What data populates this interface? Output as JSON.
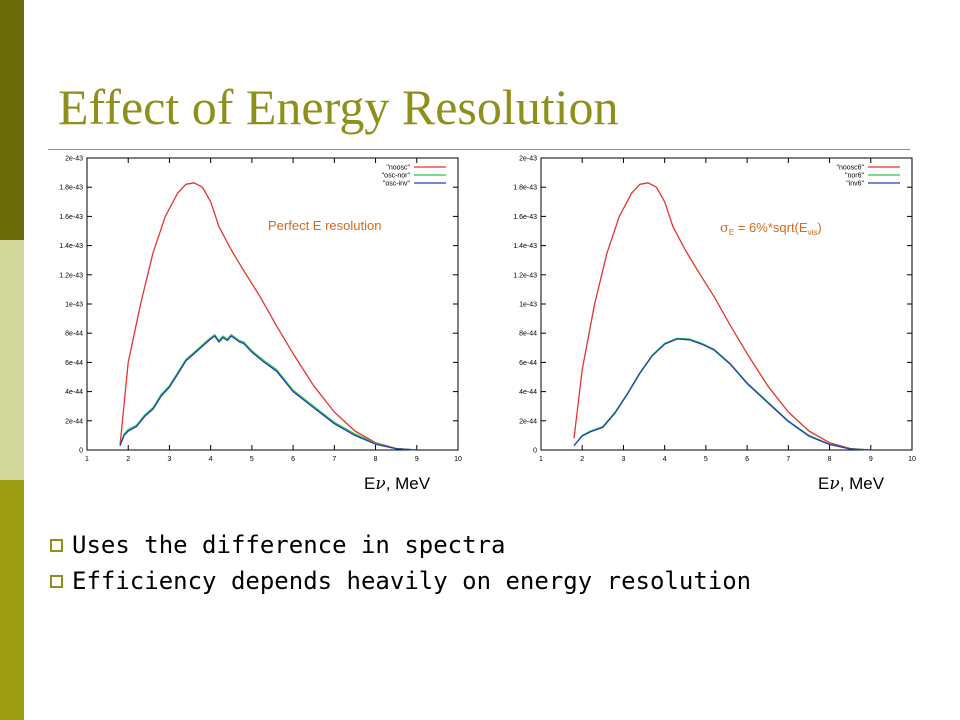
{
  "slide": {
    "title": "Effect of Energy Resolution",
    "bullets": [
      "Uses the difference in spectra",
      "Efficiency depends heavily on energy resolution"
    ],
    "colors": {
      "accent": "#8f8f1c",
      "bar_dark": "#6b6b0a",
      "bar_light": "#d2d79c",
      "bar_mid": "#9d9d14"
    }
  },
  "xcaption": {
    "symbol": "E",
    "nu": "ν",
    "unit": ", MeV"
  },
  "chart_data": [
    {
      "type": "line",
      "annotation": "Perfect E resolution",
      "xlim": [
        1,
        10
      ],
      "ylim": [
        0,
        2e-43
      ],
      "xticks": [
        1,
        2,
        3,
        4,
        5,
        6,
        7,
        8,
        9,
        10
      ],
      "yticks": [
        0,
        2e-44,
        4e-44,
        6e-44,
        8e-44,
        1e-43,
        1.2e-43,
        1.4e-43,
        1.6e-43,
        1.8e-43,
        2e-43
      ],
      "ytick_labels": [
        "0",
        "2e-44",
        "4e-44",
        "6e-44",
        "8e-44",
        "1e-43",
        "1.2e-43",
        "1.4e-43",
        "1.6e-43",
        "1.8e-43",
        "2e-43"
      ],
      "legend_position": "top-right",
      "series": [
        {
          "name": "\"noosc\"",
          "color": "#e8322d",
          "x": [
            1.8,
            2.0,
            2.3,
            2.6,
            2.9,
            3.2,
            3.4,
            3.6,
            3.8,
            4.0,
            4.2,
            4.5,
            4.8,
            5.2,
            5.6,
            6.0,
            6.5,
            7.0,
            7.5,
            8.0,
            8.5,
            9.0
          ],
          "y": [
            3e-45,
            6e-44,
            1e-43,
            1.35e-43,
            1.6e-43,
            1.76e-43,
            1.82e-43,
            1.83e-43,
            1.8e-43,
            1.7e-43,
            1.53e-43,
            1.37e-43,
            1.23e-43,
            1.05e-43,
            8.5e-44,
            6.6e-44,
            4.4e-44,
            2.6e-44,
            1.3e-44,
            5e-45,
            1e-45,
            0
          ]
        },
        {
          "name": "\"osc-nor\"",
          "color": "#2fc44a",
          "x": [
            1.8,
            1.9,
            2.0,
            2.2,
            2.4,
            2.6,
            2.8,
            3.0,
            3.2,
            3.4,
            3.6,
            3.8,
            4.0,
            4.1,
            4.2,
            4.3,
            4.4,
            4.5,
            4.6,
            4.7,
            4.8,
            5.0,
            5.3,
            5.6,
            6.0,
            6.5,
            7.0,
            7.5,
            8.0,
            8.5,
            9.0
          ],
          "y": [
            3e-45,
            1.1e-44,
            1.4e-44,
            1.7e-44,
            2.4e-44,
            2.9e-44,
            3.8e-44,
            4.4e-44,
            5.3e-44,
            6.2e-44,
            6.7e-44,
            7.2e-44,
            7.7e-44,
            7.9e-44,
            7.5e-44,
            7.8e-44,
            7.6e-44,
            7.9e-44,
            7.7e-44,
            7.5e-44,
            7.4e-44,
            6.8e-44,
            6.1e-44,
            5.5e-44,
            4.1e-44,
            3e-44,
            1.9e-44,
            1.1e-44,
            4.5e-45,
            1e-45,
            0
          ]
        },
        {
          "name": "\"osc-inv\"",
          "color": "#1f3fb8",
          "x": [
            1.8,
            1.9,
            2.0,
            2.2,
            2.4,
            2.6,
            2.8,
            3.0,
            3.2,
            3.4,
            3.6,
            3.8,
            4.0,
            4.1,
            4.2,
            4.3,
            4.4,
            4.5,
            4.6,
            4.7,
            4.8,
            5.0,
            5.3,
            5.6,
            6.0,
            6.5,
            7.0,
            7.5,
            8.0,
            8.5,
            9.0
          ],
          "y": [
            3e-45,
            1e-44,
            1.3e-44,
            1.6e-44,
            2.3e-44,
            2.8e-44,
            3.7e-44,
            4.3e-44,
            5.2e-44,
            6.1e-44,
            6.6e-44,
            7.1e-44,
            7.6e-44,
            7.8e-44,
            7.4e-44,
            7.7e-44,
            7.5e-44,
            7.8e-44,
            7.6e-44,
            7.4e-44,
            7.3e-44,
            6.7e-44,
            6e-44,
            5.4e-44,
            4e-44,
            2.9e-44,
            1.8e-44,
            1e-44,
            4e-45,
            8e-46,
            0
          ]
        }
      ]
    },
    {
      "type": "line",
      "annotation_parts": {
        "sigma": "σ",
        "sigma_sub": "E",
        "mid": " = 6%*sqrt(E",
        "vis_sub": "vis",
        "close": ")"
      },
      "xlim": [
        1,
        10
      ],
      "ylim": [
        0,
        2e-43
      ],
      "xticks": [
        1,
        2,
        3,
        4,
        5,
        6,
        7,
        8,
        9,
        10
      ],
      "yticks": [
        0,
        2e-44,
        4e-44,
        6e-44,
        8e-44,
        1e-43,
        1.2e-43,
        1.4e-43,
        1.6e-43,
        1.8e-43,
        2e-43
      ],
      "ytick_labels": [
        "0",
        "2e-44",
        "4e-44",
        "6e-44",
        "8e-44",
        "1e-43",
        "1.2e-43",
        "1.4e-43",
        "1.6e-43",
        "1.8e-43",
        "2e-43"
      ],
      "legend_position": "top-right",
      "series": [
        {
          "name": "\"noosc6\"",
          "color": "#e8322d",
          "x": [
            1.8,
            2.0,
            2.3,
            2.6,
            2.9,
            3.2,
            3.4,
            3.6,
            3.8,
            4.0,
            4.2,
            4.5,
            4.8,
            5.2,
            5.6,
            6.0,
            6.5,
            7.0,
            7.5,
            8.0,
            8.5,
            9.0
          ],
          "y": [
            8e-45,
            5.5e-44,
            1e-43,
            1.35e-43,
            1.6e-43,
            1.76e-43,
            1.82e-43,
            1.83e-43,
            1.8e-43,
            1.7e-43,
            1.53e-43,
            1.37e-43,
            1.23e-43,
            1.05e-43,
            8.5e-44,
            6.6e-44,
            4.4e-44,
            2.6e-44,
            1.3e-44,
            5e-45,
            1e-45,
            0
          ]
        },
        {
          "name": "\"nor6\"",
          "color": "#2fc44a",
          "x": [
            1.8,
            2.0,
            2.2,
            2.5,
            2.8,
            3.1,
            3.4,
            3.7,
            4.0,
            4.3,
            4.6,
            4.9,
            5.2,
            5.6,
            6.0,
            6.5,
            7.0,
            7.5,
            8.0,
            8.5,
            9.0
          ],
          "y": [
            3e-45,
            1e-44,
            1.3e-44,
            1.6e-44,
            2.6e-44,
            3.9e-44,
            5.3e-44,
            6.5e-44,
            7.3e-44,
            7.65e-44,
            7.6e-44,
            7.3e-44,
            6.9e-44,
            5.9e-44,
            4.6e-44,
            3.3e-44,
            2e-44,
            1e-44,
            4e-45,
            8e-46,
            0
          ]
        },
        {
          "name": "\"inv6\"",
          "color": "#1f3fb8",
          "x": [
            1.8,
            2.0,
            2.2,
            2.5,
            2.8,
            3.1,
            3.4,
            3.7,
            4.0,
            4.3,
            4.6,
            4.9,
            5.2,
            5.6,
            6.0,
            6.5,
            7.0,
            7.5,
            8.0,
            8.5,
            9.0
          ],
          "y": [
            3e-45,
            9.5e-45,
            1.25e-44,
            1.55e-44,
            2.55e-44,
            3.85e-44,
            5.25e-44,
            6.45e-44,
            7.25e-44,
            7.6e-44,
            7.55e-44,
            7.25e-44,
            6.85e-44,
            5.85e-44,
            4.55e-44,
            3.25e-44,
            1.95e-44,
            9.5e-45,
            3.8e-45,
            7e-46,
            0
          ]
        }
      ]
    }
  ]
}
